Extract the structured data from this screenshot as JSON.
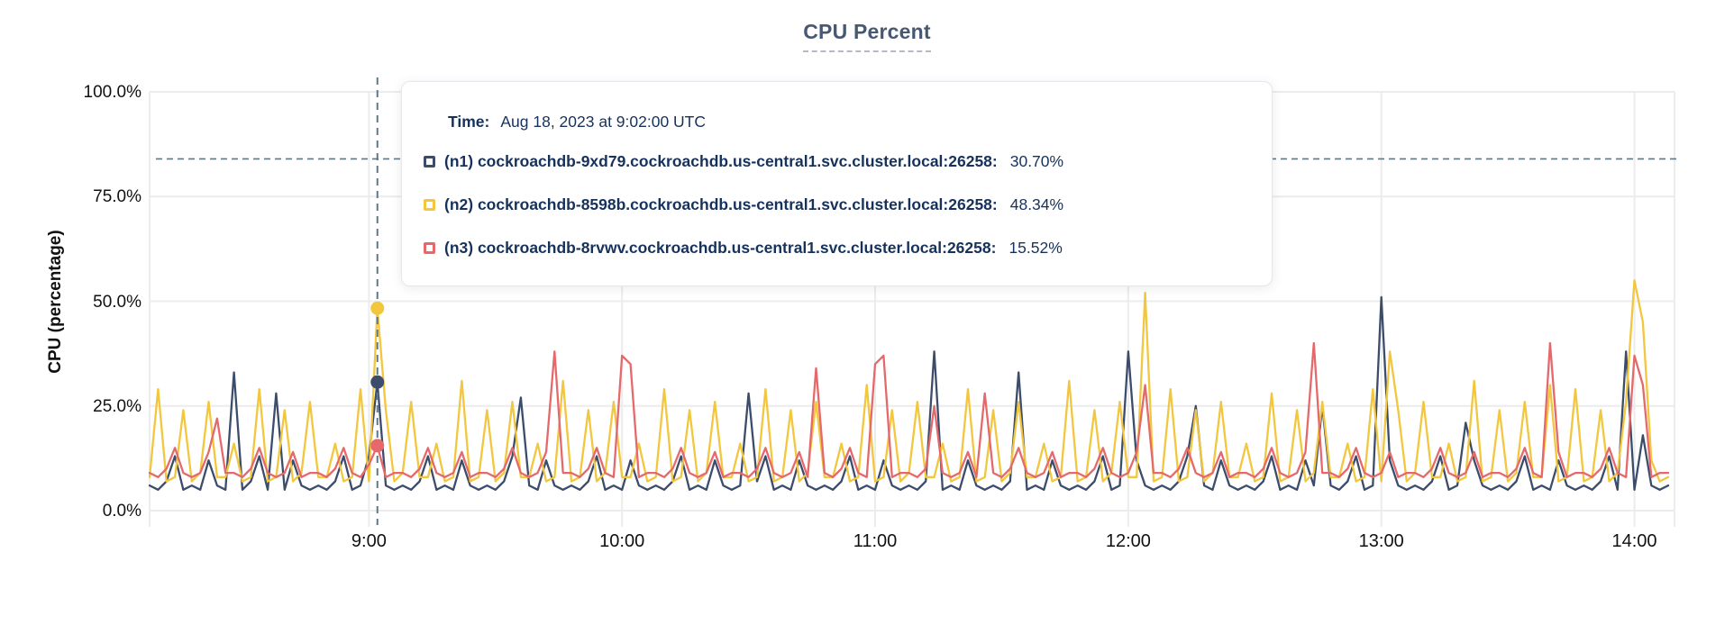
{
  "title": "CPU Percent",
  "tooltip": {
    "time_label": "Time:",
    "time_value": "Aug 18, 2023 at 9:02:00 UTC",
    "rows": [
      {
        "name": "(n1) cockroachdb-9xd79.cockroachdb.us-central1.svc.cluster.local:26258:",
        "value": "30.70%",
        "color": "#3c4d6b"
      },
      {
        "name": "(n2) cockroachdb-8598b.cockroachdb.us-central1.svc.cluster.local:26258:",
        "value": "48.34%",
        "color": "#f2c63d"
      },
      {
        "name": "(n3) cockroachdb-8rvwv.cockroachdb.us-central1.svc.cluster.local:26258:",
        "value": "15.52%",
        "color": "#e5696b"
      }
    ]
  },
  "colors": {
    "grid": "#ececec",
    "dashed_guides": "#5f7888",
    "title": "#475872",
    "tooltip_text": "#16325c"
  },
  "chart_data": {
    "type": "line",
    "title": "CPU Percent",
    "xlabel": "",
    "ylabel": "CPU (percentage)",
    "x_unit": "minutes since 08:00 UTC",
    "x_start_minute": 8,
    "x_step_minutes": 2,
    "xlim": [
      8,
      369.5
    ],
    "ylim": [
      0,
      100
    ],
    "grid": true,
    "legend_position": "tooltip",
    "yticks": [
      {
        "value": 0,
        "label": "0.0%"
      },
      {
        "value": 25,
        "label": "25.0%"
      },
      {
        "value": 50,
        "label": "50.0%"
      },
      {
        "value": 75,
        "label": "75.0%"
      },
      {
        "value": 100,
        "label": "100.0%"
      }
    ],
    "xticks": [
      {
        "minute": 60,
        "label": "9:00"
      },
      {
        "minute": 120,
        "label": "10:00"
      },
      {
        "minute": 180,
        "label": "11:00"
      },
      {
        "minute": 240,
        "label": "12:00"
      },
      {
        "minute": 300,
        "label": "13:00"
      },
      {
        "minute": 360,
        "label": "14:00"
      }
    ],
    "threshold_percent": 84,
    "hover": {
      "minute": 62,
      "time": "Aug 18, 2023 at 9:02:00 UTC",
      "values_percent": {
        "n1": 30.7,
        "n2": 48.34,
        "n3": 15.52
      }
    },
    "series": [
      {
        "id": "n1",
        "name": "(n1) cockroachdb-9xd79.cockroachdb.us-central1.svc.cluster.local:26258",
        "color": "#3c4d6b",
        "values": [
          6,
          5,
          7,
          13,
          5,
          6,
          5,
          12,
          6,
          5,
          33,
          5,
          7,
          13,
          5,
          28,
          5,
          12,
          6,
          5,
          6,
          5,
          7,
          13,
          5,
          6,
          13,
          30.7,
          6,
          5,
          6,
          5,
          7,
          13,
          5,
          6,
          5,
          12,
          6,
          5,
          6,
          5,
          7,
          13,
          27,
          6,
          5,
          12,
          6,
          5,
          6,
          5,
          7,
          13,
          5,
          6,
          5,
          12,
          6,
          5,
          6,
          5,
          7,
          13,
          5,
          6,
          5,
          12,
          6,
          5,
          6,
          28,
          7,
          13,
          5,
          6,
          5,
          12,
          6,
          5,
          6,
          5,
          7,
          13,
          5,
          6,
          5,
          12,
          6,
          5,
          6,
          5,
          7,
          38,
          5,
          6,
          5,
          12,
          6,
          5,
          6,
          5,
          7,
          33,
          5,
          6,
          5,
          12,
          6,
          5,
          6,
          5,
          7,
          13,
          5,
          6,
          38,
          12,
          6,
          5,
          6,
          5,
          7,
          13,
          25,
          6,
          5,
          12,
          6,
          5,
          6,
          5,
          7,
          13,
          5,
          6,
          5,
          12,
          6,
          25,
          6,
          5,
          7,
          13,
          5,
          6,
          51,
          12,
          6,
          5,
          6,
          5,
          7,
          13,
          5,
          6,
          21,
          12,
          6,
          5,
          6,
          5,
          7,
          13,
          5,
          6,
          5,
          12,
          6,
          5,
          6,
          5,
          7,
          13,
          5,
          38,
          5,
          18,
          6,
          5,
          6
        ]
      },
      {
        "id": "n2",
        "name": "(n2) cockroachdb-8598b.cockroachdb.us-central1.svc.cluster.local:26258",
        "color": "#f2c63d",
        "values": [
          8,
          29,
          7,
          8,
          24,
          7,
          9,
          26,
          8,
          8,
          16,
          7,
          8,
          29,
          7,
          8,
          24,
          7,
          9,
          26,
          8,
          8,
          16,
          7,
          8,
          29,
          7,
          48.3,
          24,
          7,
          9,
          26,
          8,
          8,
          16,
          7,
          8,
          31,
          7,
          8,
          24,
          7,
          9,
          26,
          8,
          8,
          16,
          7,
          8,
          31,
          7,
          8,
          24,
          7,
          9,
          26,
          8,
          8,
          16,
          7,
          8,
          29,
          7,
          8,
          24,
          7,
          9,
          26,
          8,
          8,
          16,
          7,
          8,
          29,
          7,
          8,
          24,
          7,
          9,
          26,
          8,
          8,
          16,
          7,
          8,
          30,
          7,
          8,
          24,
          7,
          9,
          26,
          8,
          8,
          16,
          7,
          8,
          29,
          7,
          8,
          24,
          7,
          9,
          26,
          8,
          8,
          16,
          7,
          8,
          31,
          7,
          8,
          24,
          7,
          9,
          26,
          8,
          8,
          52,
          7,
          8,
          29,
          7,
          8,
          24,
          7,
          9,
          26,
          8,
          8,
          16,
          7,
          8,
          28,
          7,
          8,
          24,
          7,
          9,
          26,
          8,
          8,
          16,
          7,
          8,
          29,
          7,
          38,
          24,
          7,
          9,
          26,
          8,
          8,
          16,
          7,
          8,
          31,
          7,
          8,
          24,
          7,
          9,
          26,
          8,
          8,
          30,
          7,
          8,
          29,
          7,
          8,
          24,
          7,
          9,
          26,
          55,
          45,
          12,
          7,
          8
        ]
      },
      {
        "id": "n3",
        "name": "(n3) cockroachdb-8rvwv.cockroachdb.us-central1.svc.cluster.local:26258",
        "color": "#e5696b",
        "values": [
          9,
          8,
          10,
          15,
          9,
          8,
          9,
          14,
          22,
          9,
          9,
          8,
          10,
          15,
          9,
          8,
          9,
          14,
          8,
          9,
          9,
          8,
          10,
          15,
          9,
          8,
          11,
          15.5,
          8,
          9,
          9,
          8,
          10,
          15,
          9,
          8,
          9,
          14,
          8,
          9,
          9,
          8,
          10,
          15,
          9,
          8,
          9,
          14,
          38,
          9,
          9,
          8,
          10,
          15,
          9,
          8,
          37,
          35,
          8,
          9,
          9,
          8,
          10,
          15,
          9,
          8,
          9,
          14,
          8,
          9,
          9,
          8,
          10,
          15,
          9,
          8,
          9,
          14,
          8,
          34,
          9,
          8,
          10,
          15,
          9,
          8,
          35,
          37,
          8,
          9,
          9,
          8,
          10,
          25,
          9,
          8,
          9,
          14,
          8,
          28,
          9,
          8,
          10,
          15,
          9,
          8,
          9,
          14,
          8,
          9,
          9,
          8,
          10,
          15,
          9,
          8,
          9,
          14,
          30,
          9,
          9,
          8,
          10,
          15,
          9,
          8,
          9,
          14,
          8,
          9,
          9,
          8,
          10,
          15,
          9,
          8,
          9,
          14,
          40,
          9,
          9,
          8,
          10,
          15,
          9,
          8,
          9,
          14,
          8,
          9,
          9,
          8,
          10,
          15,
          9,
          8,
          9,
          14,
          8,
          9,
          9,
          8,
          10,
          15,
          9,
          8,
          40,
          14,
          8,
          9,
          9,
          8,
          10,
          15,
          9,
          8,
          37,
          30,
          8,
          9,
          9
        ]
      }
    ]
  }
}
